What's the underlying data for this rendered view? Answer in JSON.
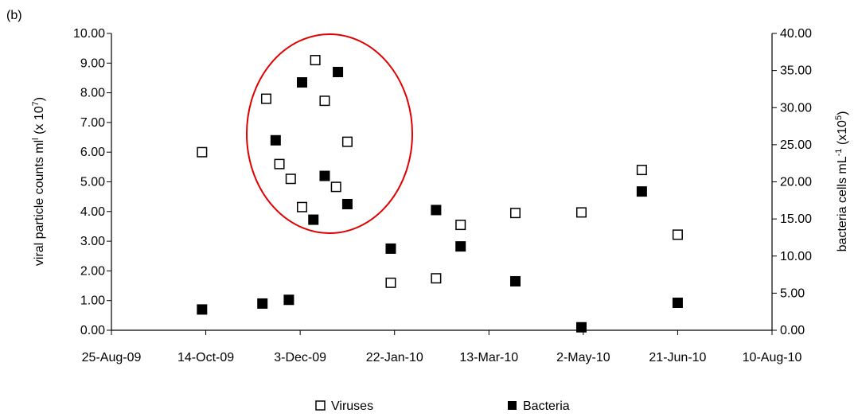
{
  "panel_label": "(b)",
  "chart_data": {
    "type": "scatter",
    "x_ticks": [
      "25-Aug-09",
      "14-Oct-09",
      "3-Dec-09",
      "22-Jan-10",
      "13-Mar-10",
      "2-May-10",
      "21-Jun-10",
      "10-Aug-10"
    ],
    "xlim": [
      "2009-08-25",
      "2010-08-10"
    ],
    "y_left": {
      "ticks": [
        "0.00",
        "1.00",
        "2.00",
        "3.00",
        "4.00",
        "5.00",
        "6.00",
        "7.00",
        "8.00",
        "9.00",
        "10.00"
      ],
      "ylim": [
        0,
        10
      ],
      "label_main": "viral particle counts ml",
      "label_sup1": "l",
      "label_mid": " (x 10",
      "label_sup2": "7",
      "label_end": ")"
    },
    "y_right": {
      "ticks": [
        "0.00",
        "5.00",
        "10.00",
        "15.00",
        "20.00",
        "25.00",
        "30.00",
        "35.00",
        "40.00"
      ],
      "ylim": [
        0,
        40
      ],
      "label_main": "bacteria cells mL",
      "label_sup1": "-1",
      "label_mid": " (x10",
      "label_sup2": "5",
      "label_end": ")"
    },
    "series": [
      {
        "name": "Viruses",
        "axis": "left",
        "marker": "open-square",
        "points": [
          {
            "x": "2009-10-12",
            "y": 6.0
          },
          {
            "x": "2009-11-15",
            "y": 7.8
          },
          {
            "x": "2009-11-22",
            "y": 5.6
          },
          {
            "x": "2009-11-28",
            "y": 5.1
          },
          {
            "x": "2009-12-04",
            "y": 4.15
          },
          {
            "x": "2009-12-11",
            "y": 9.1
          },
          {
            "x": "2009-12-16",
            "y": 7.73
          },
          {
            "x": "2009-12-22",
            "y": 4.83
          },
          {
            "x": "2009-12-28",
            "y": 6.35
          },
          {
            "x": "2010-01-20",
            "y": 1.6
          },
          {
            "x": "2010-02-13",
            "y": 1.75
          },
          {
            "x": "2010-02-26",
            "y": 3.55
          },
          {
            "x": "2010-03-27",
            "y": 3.95
          },
          {
            "x": "2010-05-01",
            "y": 3.97
          },
          {
            "x": "2010-06-02",
            "y": 5.4
          },
          {
            "x": "2010-06-21",
            "y": 3.22
          }
        ]
      },
      {
        "name": "Bacteria",
        "axis": "right",
        "marker": "filled-square",
        "points": [
          {
            "x": "2009-10-12",
            "y": 2.8
          },
          {
            "x": "2009-11-13",
            "y": 3.6
          },
          {
            "x": "2009-11-20",
            "y": 25.6
          },
          {
            "x": "2009-11-27",
            "y": 4.1
          },
          {
            "x": "2009-12-04",
            "y": 33.4
          },
          {
            "x": "2009-12-10",
            "y": 14.9
          },
          {
            "x": "2009-12-16",
            "y": 20.8
          },
          {
            "x": "2009-12-23",
            "y": 34.8
          },
          {
            "x": "2009-12-28",
            "y": 17.0
          },
          {
            "x": "2010-01-20",
            "y": 11.0
          },
          {
            "x": "2010-02-13",
            "y": 16.2
          },
          {
            "x": "2010-02-26",
            "y": 11.3
          },
          {
            "x": "2010-03-27",
            "y": 6.6
          },
          {
            "x": "2010-05-01",
            "y": 0.4
          },
          {
            "x": "2010-06-02",
            "y": 18.7
          },
          {
            "x": "2010-06-21",
            "y": 3.7
          }
        ]
      }
    ],
    "annotation": {
      "shape": "ellipse",
      "color": "#e00000",
      "encloses": "Oct–Dec 2009 cluster"
    },
    "legend": {
      "placement": "bottom-center",
      "items": [
        "Viruses",
        "Bacteria"
      ]
    },
    "grid": false
  }
}
